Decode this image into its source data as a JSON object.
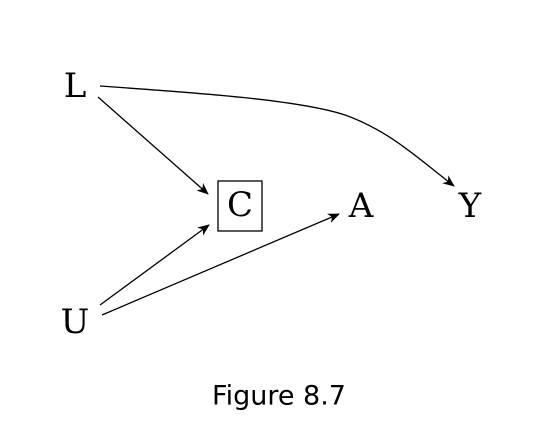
{
  "nodes": {
    "L": "L",
    "C": "C",
    "A": "A",
    "Y": "Y",
    "U": "U"
  },
  "edges": [
    {
      "from": "L",
      "to": "C"
    },
    {
      "from": "L",
      "to": "Y"
    },
    {
      "from": "U",
      "to": "C"
    },
    {
      "from": "U",
      "to": "A"
    }
  ],
  "boxed_nodes": [
    "C"
  ],
  "caption": "Figure 8.7"
}
